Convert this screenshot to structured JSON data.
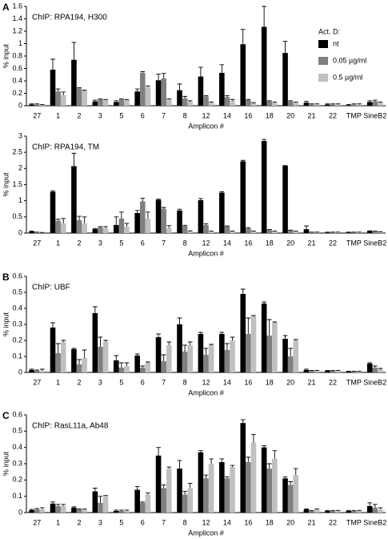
{
  "chart_data": [
    {
      "type": "bar",
      "panel_label": "A",
      "title": "ChIP: RPA194, H300",
      "xlabel": "Amplicon #",
      "ylabel": "% input",
      "legend_title": "Act. D:",
      "legend": "upper right",
      "categories": [
        "27",
        "1",
        "2",
        "3",
        "5",
        "6",
        "7",
        "8",
        "12",
        "14",
        "16",
        "18",
        "20",
        "21",
        "22",
        "TMP",
        "SineB2"
      ],
      "series": [
        {
          "name": "nt",
          "color": "#000000",
          "values": [
            0.02,
            0.58,
            0.74,
            0.07,
            0.06,
            0.23,
            0.41,
            0.25,
            0.47,
            0.53,
            0.99,
            1.27,
            0.85,
            0.05,
            0.02,
            0.01,
            0.06
          ],
          "errors": [
            0.01,
            0.17,
            0.28,
            0.02,
            0.02,
            0.04,
            0.1,
            0.1,
            0.15,
            0.13,
            0.24,
            0.33,
            0.19,
            0.02,
            0.01,
            0.01,
            0.02
          ]
        },
        {
          "name": "0.05 µg/ml",
          "color": "#808080",
          "values": [
            0.02,
            0.23,
            0.28,
            0.1,
            0.1,
            0.53,
            0.44,
            0.12,
            0.15,
            0.14,
            0.09,
            0.07,
            0.07,
            0.02,
            0.02,
            0.02,
            0.07
          ],
          "errors": [
            0.01,
            0.04,
            0.01,
            0.01,
            0.01,
            0.02,
            0.08,
            0.03,
            0.01,
            0.02,
            0.01,
            0.01,
            0.01,
            0.01,
            0.01,
            0.01,
            0.02
          ]
        },
        {
          "name": "0.5 µg/ml",
          "color": "#c0c0c0",
          "values": [
            0.01,
            0.17,
            0.24,
            0.09,
            0.09,
            0.3,
            0.1,
            0.06,
            0.05,
            0.08,
            0.04,
            0.05,
            0.05,
            0.02,
            0.02,
            0.02,
            0.05
          ],
          "errors": [
            0.01,
            0.05,
            0.01,
            0.01,
            0.01,
            0.02,
            0.01,
            0.02,
            0.01,
            0.02,
            0.01,
            0.01,
            0.01,
            0.01,
            0.01,
            0.01,
            0.01
          ]
        }
      ],
      "ylim": [
        0,
        1.6
      ],
      "yticks": [
        0,
        0.2,
        0.4,
        0.6,
        0.8,
        1,
        1.2,
        1.4,
        1.6
      ]
    },
    {
      "type": "bar",
      "title": "ChIP: RPA194, TM",
      "xlabel": "Amplicon #",
      "ylabel": "% input",
      "categories": [
        "27",
        "1",
        "2",
        "3",
        "5",
        "6",
        "7",
        "8",
        "12",
        "14",
        "16",
        "18",
        "20",
        "21",
        "22",
        "TMP",
        "SineB2"
      ],
      "series": [
        {
          "color": "#000000",
          "values": [
            0.05,
            1.28,
            2.07,
            0.12,
            0.25,
            0.62,
            1.03,
            0.7,
            1.02,
            1.25,
            2.22,
            2.85,
            2.08,
            0.12,
            0.02,
            0.02,
            0.06
          ],
          "errors": [
            0.01,
            0.03,
            0.4,
            0.02,
            0.25,
            0.08,
            0.02,
            0.04,
            0.05,
            0.03,
            0.03,
            0.05,
            0.01,
            0.1,
            0.01,
            0.01,
            0.01
          ]
        },
        {
          "color": "#808080",
          "values": [
            0.02,
            0.38,
            0.4,
            0.18,
            0.45,
            0.98,
            0.75,
            0.22,
            0.25,
            0.2,
            0.15,
            0.1,
            0.08,
            0.02,
            0.02,
            0.02,
            0.05
          ],
          "errors": [
            0.01,
            0.05,
            0.12,
            0.02,
            0.2,
            0.1,
            0.04,
            0.02,
            0.04,
            0.02,
            0.02,
            0.01,
            0.01,
            0.01,
            0.01,
            0.01,
            0.01
          ]
        },
        {
          "color": "#c0c0c0",
          "values": [
            0.01,
            0.3,
            0.3,
            0.15,
            0.2,
            0.45,
            0.15,
            0.05,
            0.05,
            0.05,
            0.05,
            0.05,
            0.05,
            0.02,
            0.02,
            0.02,
            0.03
          ],
          "errors": [
            0.01,
            0.15,
            0.2,
            0.05,
            0.1,
            0.2,
            0.08,
            0.02,
            0.01,
            0.01,
            0.01,
            0.01,
            0.01,
            0.01,
            0.01,
            0.01,
            0.01
          ]
        }
      ],
      "ylim": [
        0,
        3
      ],
      "yticks": [
        0,
        0.5,
        1,
        1.5,
        2,
        2.5,
        3
      ]
    },
    {
      "type": "bar",
      "panel_label": "B",
      "title": "ChIP: UBF",
      "xlabel": "Amplicon #",
      "ylabel": "% input",
      "categories": [
        "27",
        "1",
        "2",
        "3",
        "5",
        "6",
        "7",
        "8",
        "12",
        "14",
        "16",
        "18",
        "20",
        "21",
        "22",
        "TMP",
        "SineB2"
      ],
      "series": [
        {
          "color": "#000000",
          "values": [
            0.015,
            0.28,
            0.145,
            0.37,
            0.075,
            0.105,
            0.22,
            0.3,
            0.24,
            0.24,
            0.49,
            0.43,
            0.21,
            0.015,
            0.01,
            0.005,
            0.055
          ],
          "errors": [
            0.005,
            0.03,
            0.005,
            0.04,
            0.03,
            0.01,
            0.02,
            0.04,
            0.01,
            0.01,
            0.03,
            0.01,
            0.02,
            0.005,
            0.003,
            0.003,
            0.005
          ]
        },
        {
          "color": "#808080",
          "values": [
            0.01,
            0.12,
            0.05,
            0.16,
            0.03,
            0.03,
            0.07,
            0.13,
            0.11,
            0.14,
            0.24,
            0.23,
            0.1,
            0.01,
            0.01,
            0.005,
            0.03
          ],
          "errors": [
            0.005,
            0.06,
            0.03,
            0.06,
            0.03,
            0.01,
            0.04,
            0.04,
            0.04,
            0.04,
            0.1,
            0.1,
            0.05,
            0.003,
            0.003,
            0.002,
            0.01
          ]
        },
        {
          "color": "#c0c0c0",
          "values": [
            0.01,
            0.19,
            0.09,
            0.19,
            0.04,
            0.06,
            0.17,
            0.17,
            0.17,
            0.2,
            0.35,
            0.31,
            0.2,
            0.01,
            0.01,
            0.005,
            0.02
          ],
          "errors": [
            0.01,
            0.01,
            0.05,
            0.01,
            0.02,
            0.005,
            0.02,
            0.02,
            0.005,
            0.02,
            0.005,
            0.005,
            0.005,
            0.003,
            0.003,
            0.002,
            0.005
          ]
        }
      ],
      "ylim": [
        0,
        0.6
      ],
      "yticks": [
        0,
        0.1,
        0.2,
        0.3,
        0.4,
        0.5,
        0.6
      ]
    },
    {
      "type": "bar",
      "panel_label": "C",
      "title": "ChIP: RasL11a, Ab48",
      "xlabel": "Amplicon #",
      "ylabel": "% input",
      "categories": [
        "27",
        "1",
        "2",
        "3",
        "5",
        "6",
        "7",
        "8",
        "12",
        "14",
        "16",
        "18",
        "20",
        "21",
        "22",
        "TMP",
        "SineB2"
      ],
      "series": [
        {
          "color": "#000000",
          "values": [
            0.015,
            0.055,
            0.03,
            0.13,
            0.01,
            0.14,
            0.35,
            0.27,
            0.37,
            0.31,
            0.55,
            0.4,
            0.21,
            0.02,
            0.01,
            0.01,
            0.04
          ],
          "errors": [
            0.005,
            0.01,
            0.005,
            0.02,
            0.005,
            0.02,
            0.05,
            0.05,
            0.01,
            0.02,
            0.02,
            0.01,
            0.01,
            0.003,
            0.003,
            0.003,
            0.02
          ]
        },
        {
          "color": "#808080",
          "values": [
            0.02,
            0.04,
            0.02,
            0.06,
            0.01,
            0.06,
            0.15,
            0.11,
            0.21,
            0.21,
            0.31,
            0.27,
            0.17,
            0.01,
            0.01,
            0.01,
            0.03
          ],
          "errors": [
            0.005,
            0.01,
            0.003,
            0.04,
            0.005,
            0.005,
            0.02,
            0.02,
            0.02,
            0.01,
            0.03,
            0.03,
            0.02,
            0.003,
            0.003,
            0.003,
            0.02
          ]
        },
        {
          "color": "#c0c0c0",
          "values": [
            0.02,
            0.04,
            0.02,
            0.1,
            0.01,
            0.11,
            0.27,
            0.15,
            0.3,
            0.28,
            0.43,
            0.33,
            0.23,
            0.02,
            0.01,
            0.01,
            0.02
          ],
          "errors": [
            0.01,
            0.01,
            0.003,
            0.005,
            0.005,
            0.01,
            0.01,
            0.03,
            0.03,
            0.01,
            0.05,
            0.05,
            0.04,
            0.003,
            0.003,
            0.003,
            0.01
          ]
        }
      ],
      "ylim": [
        0,
        0.6
      ],
      "yticks": [
        0,
        0.1,
        0.2,
        0.3,
        0.4,
        0.5,
        0.6
      ]
    }
  ]
}
